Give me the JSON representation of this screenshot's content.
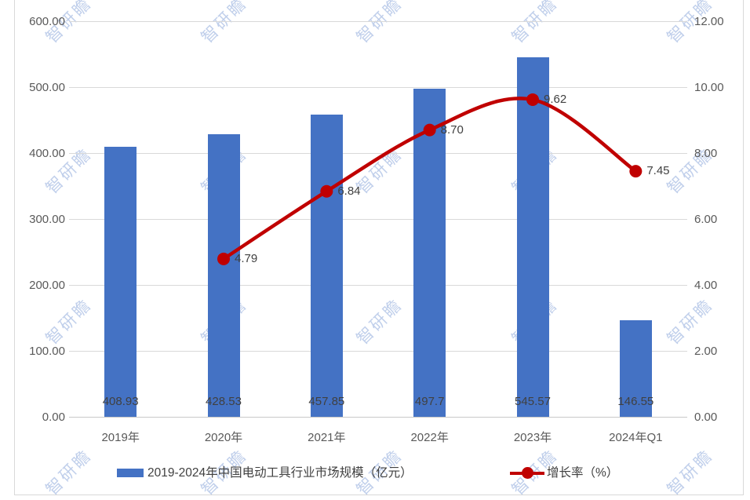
{
  "watermark": {
    "text": "智研瞻",
    "color": "#8ea9db"
  },
  "colors": {
    "bar": "#4472c4",
    "line": "#c00000",
    "grid": "#d9d9d9",
    "axis_text": "#595959",
    "data_label_text": "#404040",
    "frame_border": "#d9d9d9"
  },
  "legend": {
    "bar_label": "2019-2024年中国电动工具行业市场规模（亿元）",
    "line_label": "增长率（%）"
  },
  "chart_data": {
    "type": "bar",
    "subtype": "combo-bar-line",
    "title": "",
    "categories": [
      "2019年",
      "2020年",
      "2021年",
      "2022年",
      "2023年",
      "2024年Q1"
    ],
    "series": [
      {
        "name": "2019-2024年中国电动工具行业市场规模（亿元）",
        "type": "bar",
        "axis": "left",
        "color": "#4472c4",
        "values": [
          408.93,
          428.53,
          457.85,
          497.7,
          545.57,
          146.55
        ],
        "labels": [
          "408.93",
          "428.53",
          "457.85",
          "497.7",
          "545.57",
          "146.55"
        ]
      },
      {
        "name": "增长率（%）",
        "type": "line",
        "axis": "right",
        "color": "#c00000",
        "smooth": true,
        "values": [
          null,
          4.79,
          6.84,
          8.7,
          9.62,
          7.45
        ],
        "labels": [
          null,
          "4.79",
          "6.84",
          "8.70",
          "9.62",
          "7.45"
        ]
      }
    ],
    "left_axis": {
      "min": 0,
      "max": 600,
      "step": 100,
      "ticks": [
        "600.00",
        "500.00",
        "400.00",
        "300.00",
        "200.00",
        "100.00",
        "0.00"
      ]
    },
    "right_axis": {
      "min": 0,
      "max": 12,
      "step": 2,
      "ticks": [
        "12.00",
        "10.00",
        "8.00",
        "6.00",
        "4.00",
        "2.00",
        "0.00"
      ]
    },
    "grid": true,
    "legend_position": "bottom"
  }
}
